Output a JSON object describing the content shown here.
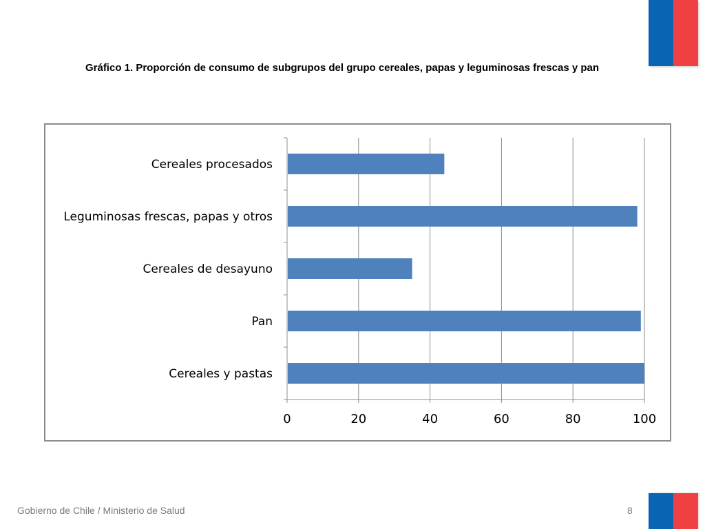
{
  "colors": {
    "flag_blue": "#0a64b4",
    "flag_red": "#ef4044",
    "bar": "#4f81bd",
    "grid": "#8c8c8c"
  },
  "slide": {
    "title": "Gráfico 1. Proporción de consumo de subgrupos del grupo cereales, papas y leguminosas frescas y pan",
    "footer": "Gobierno de Chile / Ministerio de Salud",
    "page_number": "8"
  },
  "chart_data": {
    "type": "bar",
    "orientation": "horizontal",
    "categories": [
      "Cereales procesados",
      "Leguminosas frescas, papas y otros",
      "Cereales de desayuno",
      "Pan",
      "Cereales y pastas"
    ],
    "values": [
      44,
      98,
      35,
      99,
      100
    ],
    "xlim": [
      0,
      100
    ],
    "xticks": [
      "0",
      "20",
      "40",
      "60",
      "80",
      "100"
    ],
    "grid": true
  }
}
